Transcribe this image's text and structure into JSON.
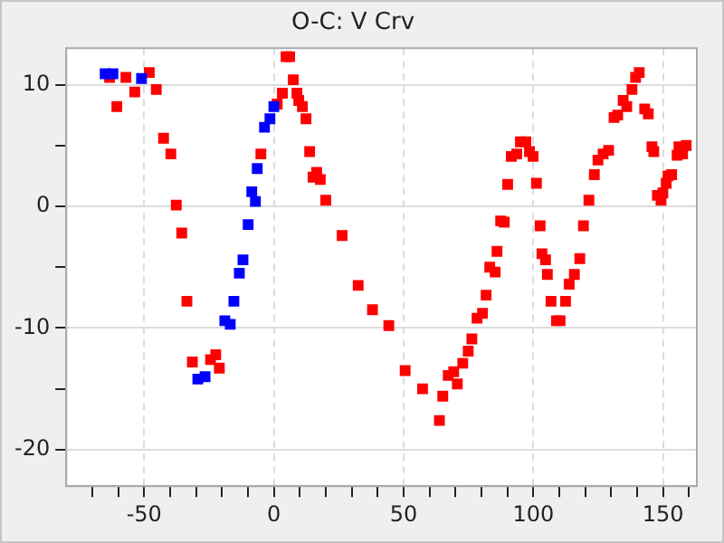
{
  "chart_data": {
    "type": "scatter",
    "title": "O-C: V Crv",
    "marker": "square",
    "grid": true,
    "legend": false,
    "xlim": [
      -80,
      163
    ],
    "ylim": [
      -23,
      13
    ],
    "xticks": [
      {
        "value": -70,
        "label": null
      },
      {
        "value": -60,
        "label": null
      },
      -50,
      {
        "value": -40,
        "label": null
      },
      {
        "value": -30,
        "label": null
      },
      {
        "value": -20,
        "label": null
      },
      {
        "value": -10,
        "label": null
      },
      0,
      {
        "value": 10,
        "label": null
      },
      {
        "value": 20,
        "label": null
      },
      {
        "value": 30,
        "label": null
      },
      {
        "value": 40,
        "label": null
      },
      50,
      {
        "value": 60,
        "label": null
      },
      {
        "value": 70,
        "label": null
      },
      {
        "value": 80,
        "label": null
      },
      {
        "value": 90,
        "label": null
      },
      100,
      {
        "value": 110,
        "label": null
      },
      {
        "value": 120,
        "label": null
      },
      {
        "value": 130,
        "label": null
      },
      {
        "value": 140,
        "label": null
      },
      150,
      {
        "value": 160,
        "label": null
      }
    ],
    "yticks": [
      -20,
      {
        "value": -15,
        "label": null
      },
      -10,
      {
        "value": -5,
        "label": null
      },
      0,
      {
        "value": 5,
        "label": null
      },
      10
    ],
    "series": [
      {
        "color": "#0000ff",
        "x": [
          -65,
          -62,
          -51,
          0,
          -1.5,
          -3.6,
          -6.4,
          -8.5,
          -7.1,
          -9.9,
          -11.9,
          -13.3,
          -15.4,
          -18.9,
          -16.8,
          -26.5,
          -29.3
        ],
        "values": [
          10.9,
          10.9,
          10.5,
          8.2,
          7.2,
          6.5,
          3.1,
          1.2,
          0.4,
          -1.5,
          -4.4,
          -5.5,
          -7.8,
          -9.4,
          -9.7,
          -14.0,
          -14.2
        ]
      },
      {
        "color": "#ff0000",
        "x": [
          -63.3,
          -60.5,
          -57,
          -53.6,
          -48,
          -45.3,
          -42.5,
          -39.7,
          -37.6,
          -35.5,
          -33.5,
          -31.4,
          -24.4,
          -22.4,
          -21,
          -5,
          1.3,
          3.3,
          4.7,
          6.1,
          7.5,
          8.9,
          9.6,
          11,
          12.4,
          13.8,
          16.5,
          15.1,
          17.9,
          20,
          26.3,
          32.5,
          38,
          44.3,
          50.6,
          57.3,
          65.1,
          63.8,
          67.2,
          69.3,
          70.7,
          72.8,
          74.9,
          76.3,
          78.3,
          80.4,
          81.8,
          83.2,
          85.3,
          86,
          87.4,
          88.8,
          90.1,
          91.5,
          93.6,
          95,
          97.1,
          98.5,
          99.9,
          101.2,
          102.6,
          103.3,
          104.7,
          105.4,
          106.8,
          108.9,
          110.3,
          112.4,
          113.8,
          115.8,
          117.9,
          119.3,
          121.4,
          123.5,
          124.9,
          126.9,
          129,
          131.1,
          132.5,
          134.6,
          136,
          138,
          139.4,
          140.8,
          142.9,
          144.3,
          145.7,
          146.4,
          147.8,
          149.2,
          149.9,
          151.2,
          151.9,
          153.3,
          155.4,
          156.1,
          157.5,
          158.9
        ],
        "values": [
          10.6,
          8.2,
          10.6,
          9.4,
          11.0,
          9.6,
          5.6,
          4.3,
          0.1,
          -2.2,
          -7.8,
          -12.8,
          -12.6,
          -12.2,
          -13.3,
          4.3,
          8.4,
          9.3,
          12.3,
          12.3,
          10.4,
          9.3,
          8.7,
          8.2,
          7.2,
          4.5,
          2.8,
          2.4,
          2.2,
          0.5,
          -2.4,
          -6.5,
          -8.5,
          -9.8,
          -13.5,
          -15.0,
          -15.6,
          -17.6,
          -13.9,
          -13.6,
          -14.6,
          -12.9,
          -11.9,
          -10.9,
          -9.2,
          -8.8,
          -7.3,
          -5.0,
          -5.4,
          -3.7,
          -1.2,
          -1.3,
          1.8,
          4.1,
          4.3,
          5.3,
          5.3,
          4.5,
          4.1,
          1.9,
          -1.6,
          -3.9,
          -4.4,
          -5.6,
          -7.8,
          -9.4,
          -9.4,
          -7.8,
          -6.4,
          -5.6,
          -4.3,
          -1.6,
          0.5,
          2.6,
          3.8,
          4.3,
          4.6,
          7.3,
          7.5,
          8.7,
          8.2,
          9.6,
          10.6,
          11.0,
          8.0,
          7.6,
          4.9,
          4.5,
          0.9,
          0.5,
          1.1,
          1.9,
          2.5,
          2.6,
          4.2,
          4.9,
          4.3,
          5.0
        ]
      }
    ]
  }
}
